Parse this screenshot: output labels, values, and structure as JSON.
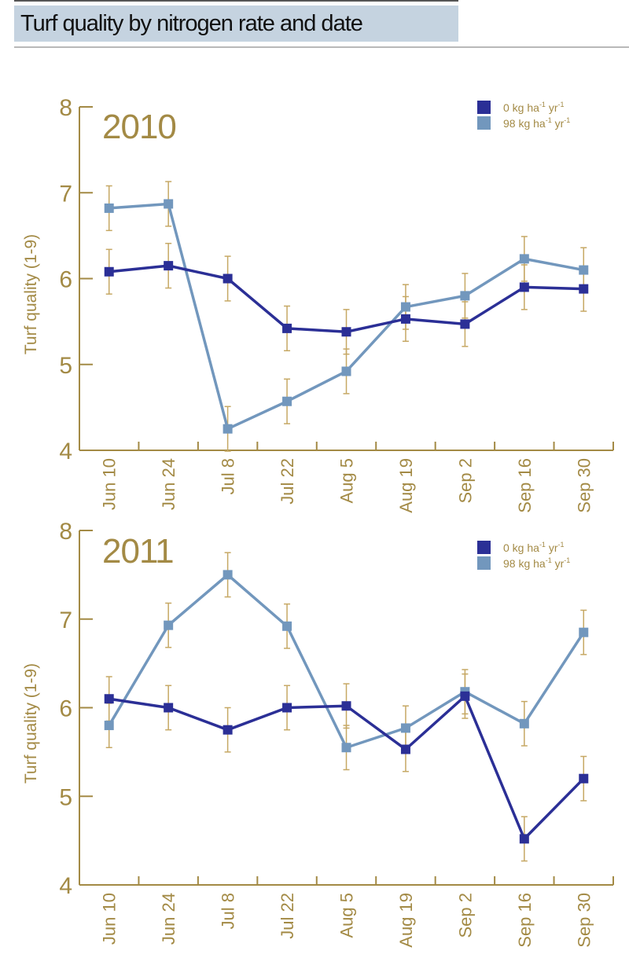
{
  "header": {
    "title": "Turf quality by nitrogen rate and date"
  },
  "colors": {
    "series_0kg": "#2b2f96",
    "series_98kg": "#7297bd",
    "axis": "#a38a45",
    "error_bar": "#c6a864",
    "title_bg": "#c5d3e0"
  },
  "chart_data": [
    {
      "type": "line",
      "title": "2010",
      "xlabel": "",
      "ylabel": "Turf quality (1-9)",
      "ylim": [
        4,
        8
      ],
      "yticks": [
        4,
        5,
        6,
        7,
        8
      ],
      "categories": [
        "Jun 10",
        "Jun 24",
        "Jul 8",
        "Jul 22",
        "Aug 5",
        "Aug 19",
        "Sep 2",
        "Sep 16",
        "Sep 30"
      ],
      "legend_position": "top-right",
      "grid": false,
      "series": [
        {
          "name": "0 kg ha-1 yr-1",
          "name_base": "0 kg ha",
          "name_sup1": "-1",
          "name_mid": " yr",
          "name_sup2": "-1",
          "values": [
            6.08,
            6.15,
            6.0,
            5.42,
            5.38,
            5.53,
            5.47,
            5.9,
            5.88
          ],
          "error": [
            0.26,
            0.26,
            0.26,
            0.26,
            0.26,
            0.26,
            0.26,
            0.26,
            0.26
          ]
        },
        {
          "name": "98 kg ha-1 yr-1",
          "name_base": "98 kg ha",
          "name_sup1": "-1",
          "name_mid": " yr",
          "name_sup2": "-1",
          "values": [
            6.82,
            6.87,
            4.25,
            4.57,
            4.92,
            5.67,
            5.8,
            6.23,
            6.1
          ],
          "error": [
            0.26,
            0.26,
            0.26,
            0.26,
            0.26,
            0.26,
            0.26,
            0.26,
            0.26
          ]
        }
      ]
    },
    {
      "type": "line",
      "title": "2011",
      "xlabel": "",
      "ylabel": "Turf quality (1-9)",
      "ylim": [
        4,
        8
      ],
      "yticks": [
        4,
        5,
        6,
        7,
        8
      ],
      "categories": [
        "Jun 10",
        "Jun 24",
        "Jul 8",
        "Jul 22",
        "Aug 5",
        "Aug 19",
        "Sep 2",
        "Sep 16",
        "Sep 30"
      ],
      "legend_position": "top-right",
      "grid": false,
      "series": [
        {
          "name": "0 kg ha-1 yr-1",
          "name_base": "0 kg ha",
          "name_sup1": "-1",
          "name_mid": " yr",
          "name_sup2": "-1",
          "values": [
            6.1,
            6.0,
            5.75,
            6.0,
            6.02,
            5.53,
            6.13,
            4.52,
            5.2
          ],
          "error": [
            0.25,
            0.25,
            0.25,
            0.25,
            0.25,
            0.25,
            0.25,
            0.25,
            0.25
          ]
        },
        {
          "name": "98 kg ha-1 yr-1",
          "name_base": "98 kg ha",
          "name_sup1": "-1",
          "name_mid": " yr",
          "name_sup2": "-1",
          "values": [
            5.8,
            6.93,
            7.5,
            6.92,
            5.55,
            5.77,
            6.18,
            5.82,
            6.85
          ],
          "error": [
            0.25,
            0.25,
            0.25,
            0.25,
            0.25,
            0.25,
            0.25,
            0.25,
            0.25
          ]
        }
      ]
    }
  ]
}
